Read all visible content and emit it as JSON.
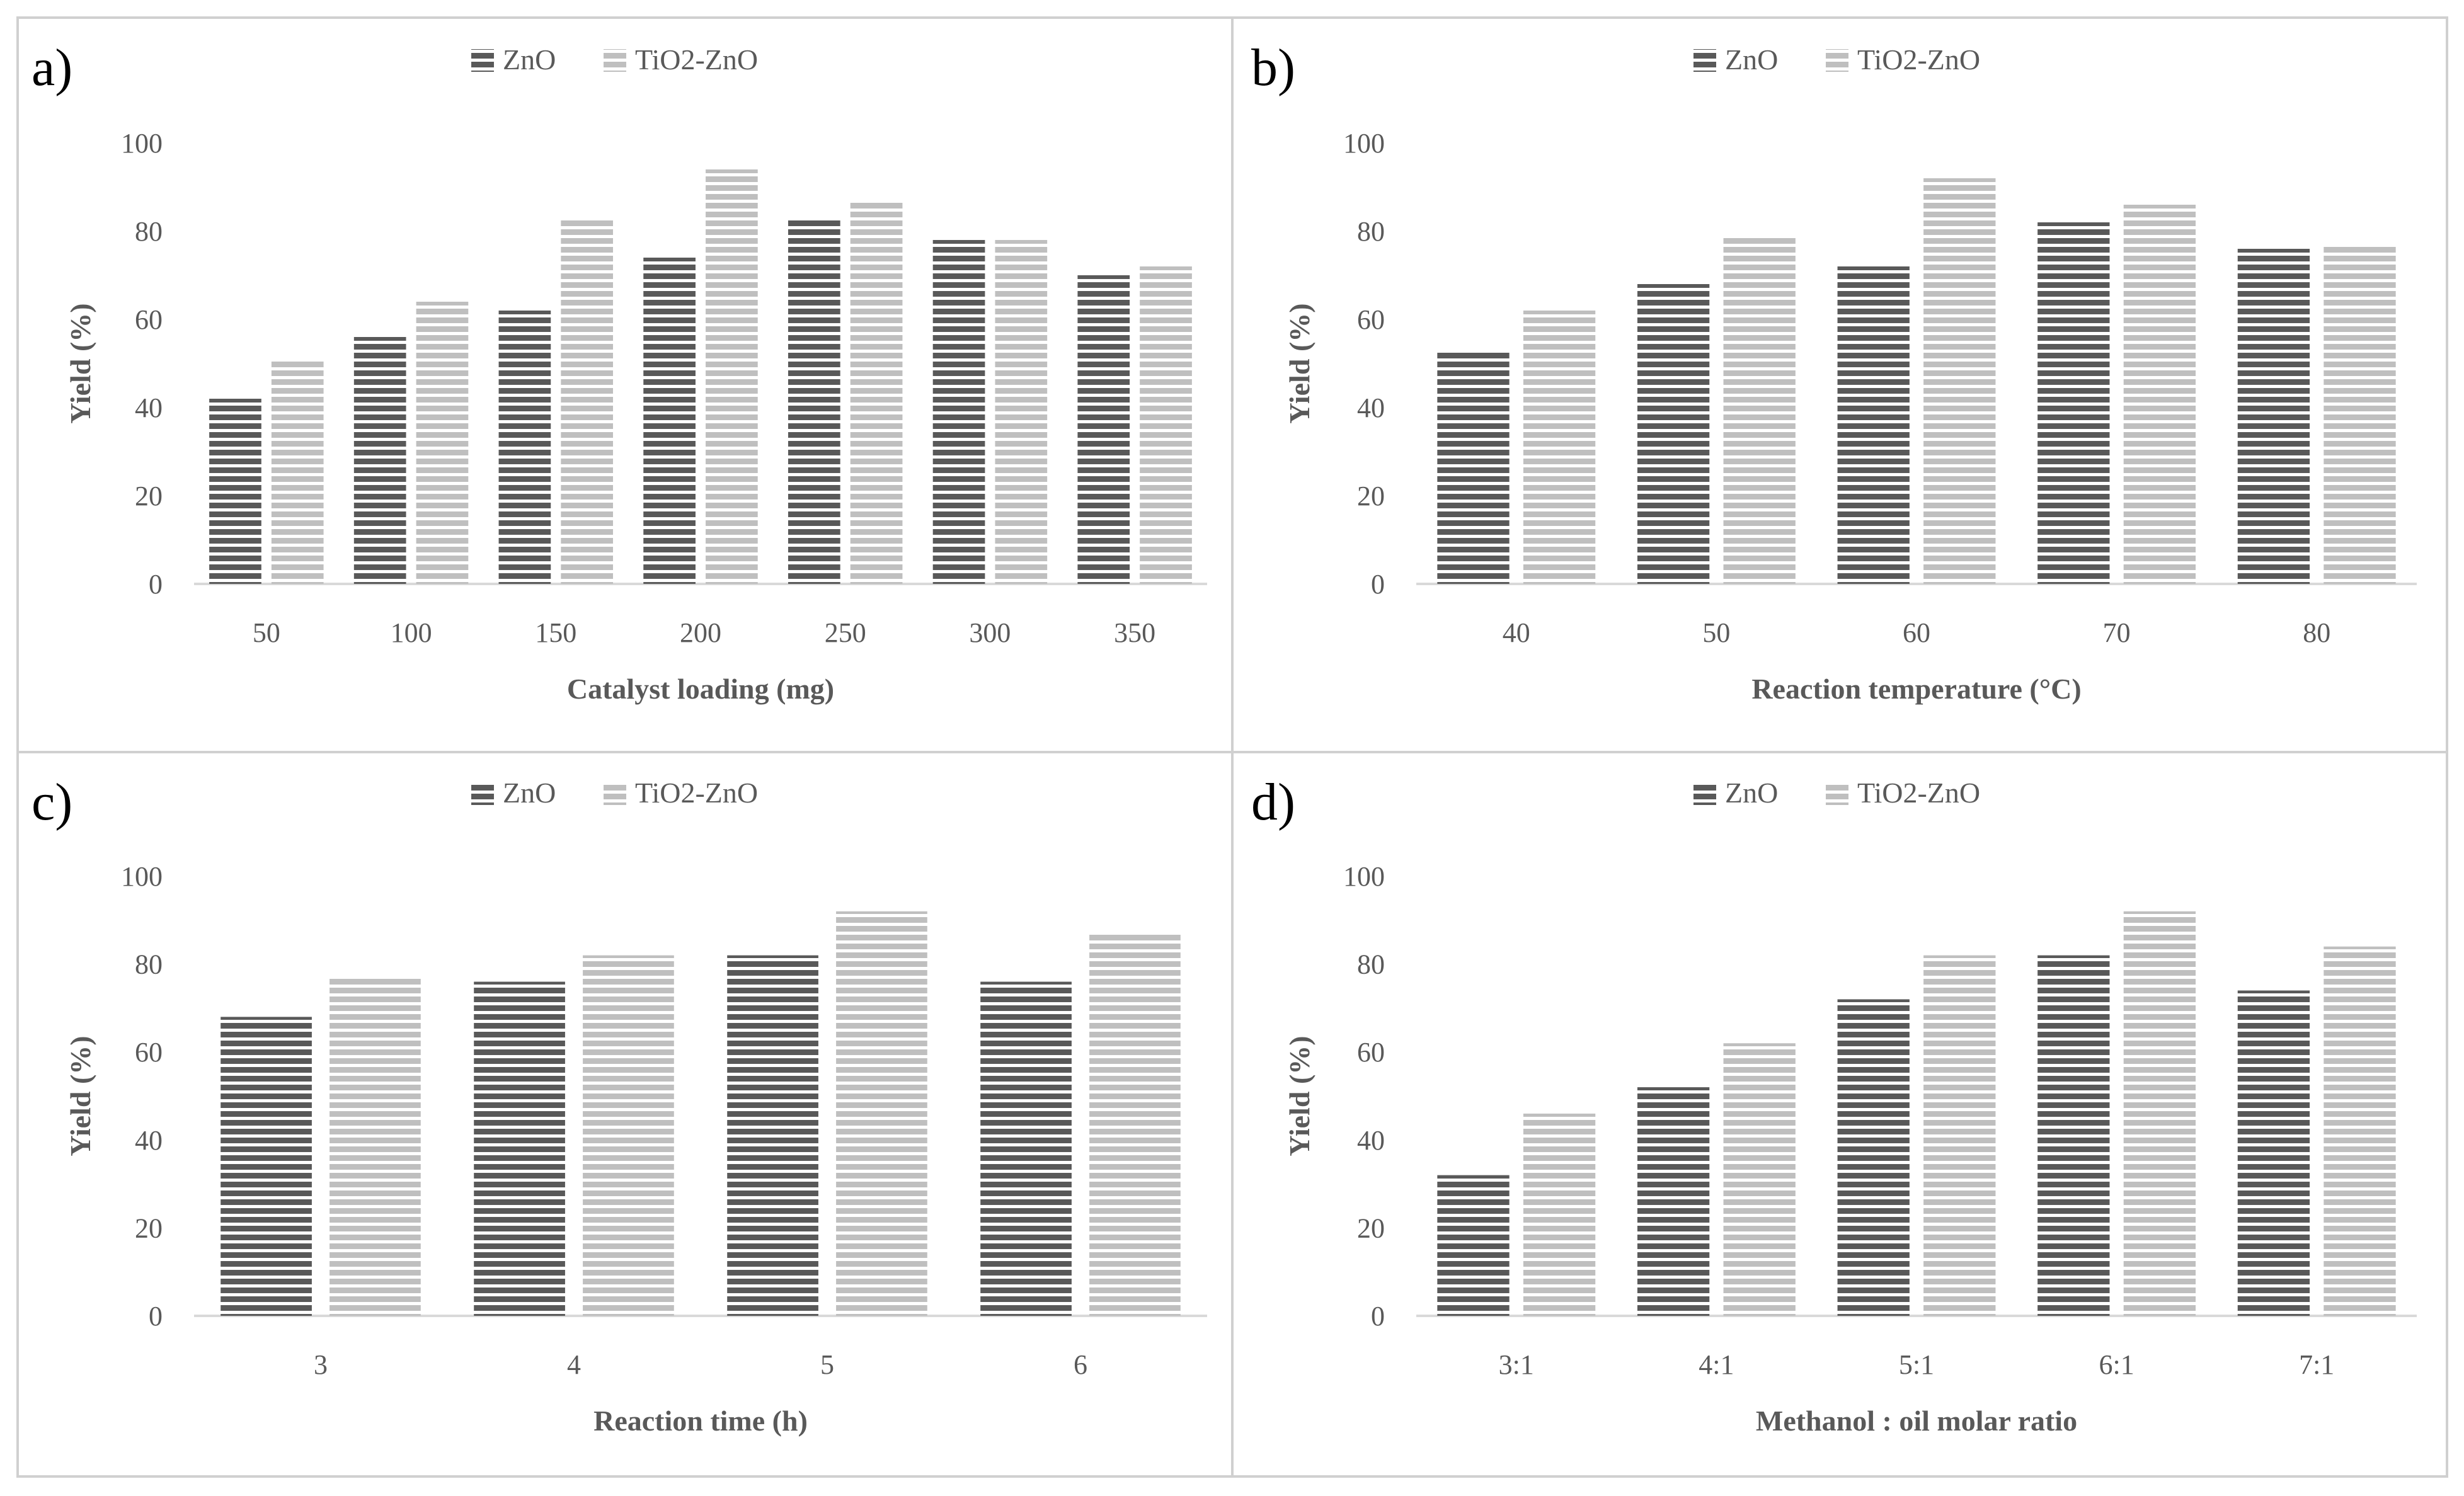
{
  "colors": {
    "zno": "#595959",
    "tio2_zno": "#bfbfbf",
    "axis": "#d9d9d9",
    "border": "#d0d0d0",
    "text": "#595959"
  },
  "chart_data": [
    {
      "type": "bar",
      "panel_label": "a)",
      "categories": [
        "50",
        "100",
        "150",
        "200",
        "250",
        "300",
        "350"
      ],
      "series": [
        {
          "name": "ZnO",
          "values": [
            42,
            56,
            62,
            74,
            83,
            78,
            70
          ]
        },
        {
          "name": "TiO2-ZnO",
          "values": [
            51,
            64,
            83,
            94,
            87,
            78,
            72
          ]
        }
      ],
      "xlabel": "Catalyst loading (mg)",
      "ylabel": "Yield (%)",
      "ylim": [
        0,
        100
      ],
      "yticks": [
        "0",
        "20",
        "40",
        "60",
        "80",
        "100"
      ],
      "legend": "top-center"
    },
    {
      "type": "bar",
      "panel_label": "b)",
      "categories": [
        "40",
        "50",
        "60",
        "70",
        "80"
      ],
      "series": [
        {
          "name": "ZnO",
          "values": [
            53,
            68,
            72,
            82,
            76
          ]
        },
        {
          "name": "TiO2-ZnO",
          "values": [
            62,
            79,
            92,
            86,
            77
          ]
        }
      ],
      "xlabel": "Reaction temperature (°C)",
      "ylabel": "Yield (%)",
      "ylim": [
        0,
        100
      ],
      "yticks": [
        "0",
        "20",
        "40",
        "60",
        "80",
        "100"
      ],
      "legend": "top-center"
    },
    {
      "type": "bar",
      "panel_label": "c)",
      "categories": [
        "3",
        "4",
        "5",
        "6"
      ],
      "series": [
        {
          "name": "ZnO",
          "values": [
            68,
            76,
            82,
            76
          ]
        },
        {
          "name": "TiO2-ZnO",
          "values": [
            77,
            82,
            92,
            87
          ]
        }
      ],
      "xlabel": "Reaction time (h)",
      "ylabel": "Yield (%)",
      "ylim": [
        0,
        100
      ],
      "yticks": [
        "0",
        "20",
        "40",
        "60",
        "80",
        "100"
      ],
      "legend": "top-center"
    },
    {
      "type": "bar",
      "panel_label": "d)",
      "categories": [
        "3:1",
        "4:1",
        "5:1",
        "6:1",
        "7:1"
      ],
      "series": [
        {
          "name": "ZnO",
          "values": [
            32,
            52,
            72,
            82,
            74
          ]
        },
        {
          "name": "TiO2-ZnO",
          "values": [
            46,
            62,
            82,
            92,
            84
          ]
        }
      ],
      "xlabel": "Methanol : oil molar ratio",
      "ylabel": "Yield (%)",
      "ylim": [
        0,
        100
      ],
      "yticks": [
        "0",
        "20",
        "40",
        "60",
        "80",
        "100"
      ],
      "legend": "top-center"
    }
  ]
}
